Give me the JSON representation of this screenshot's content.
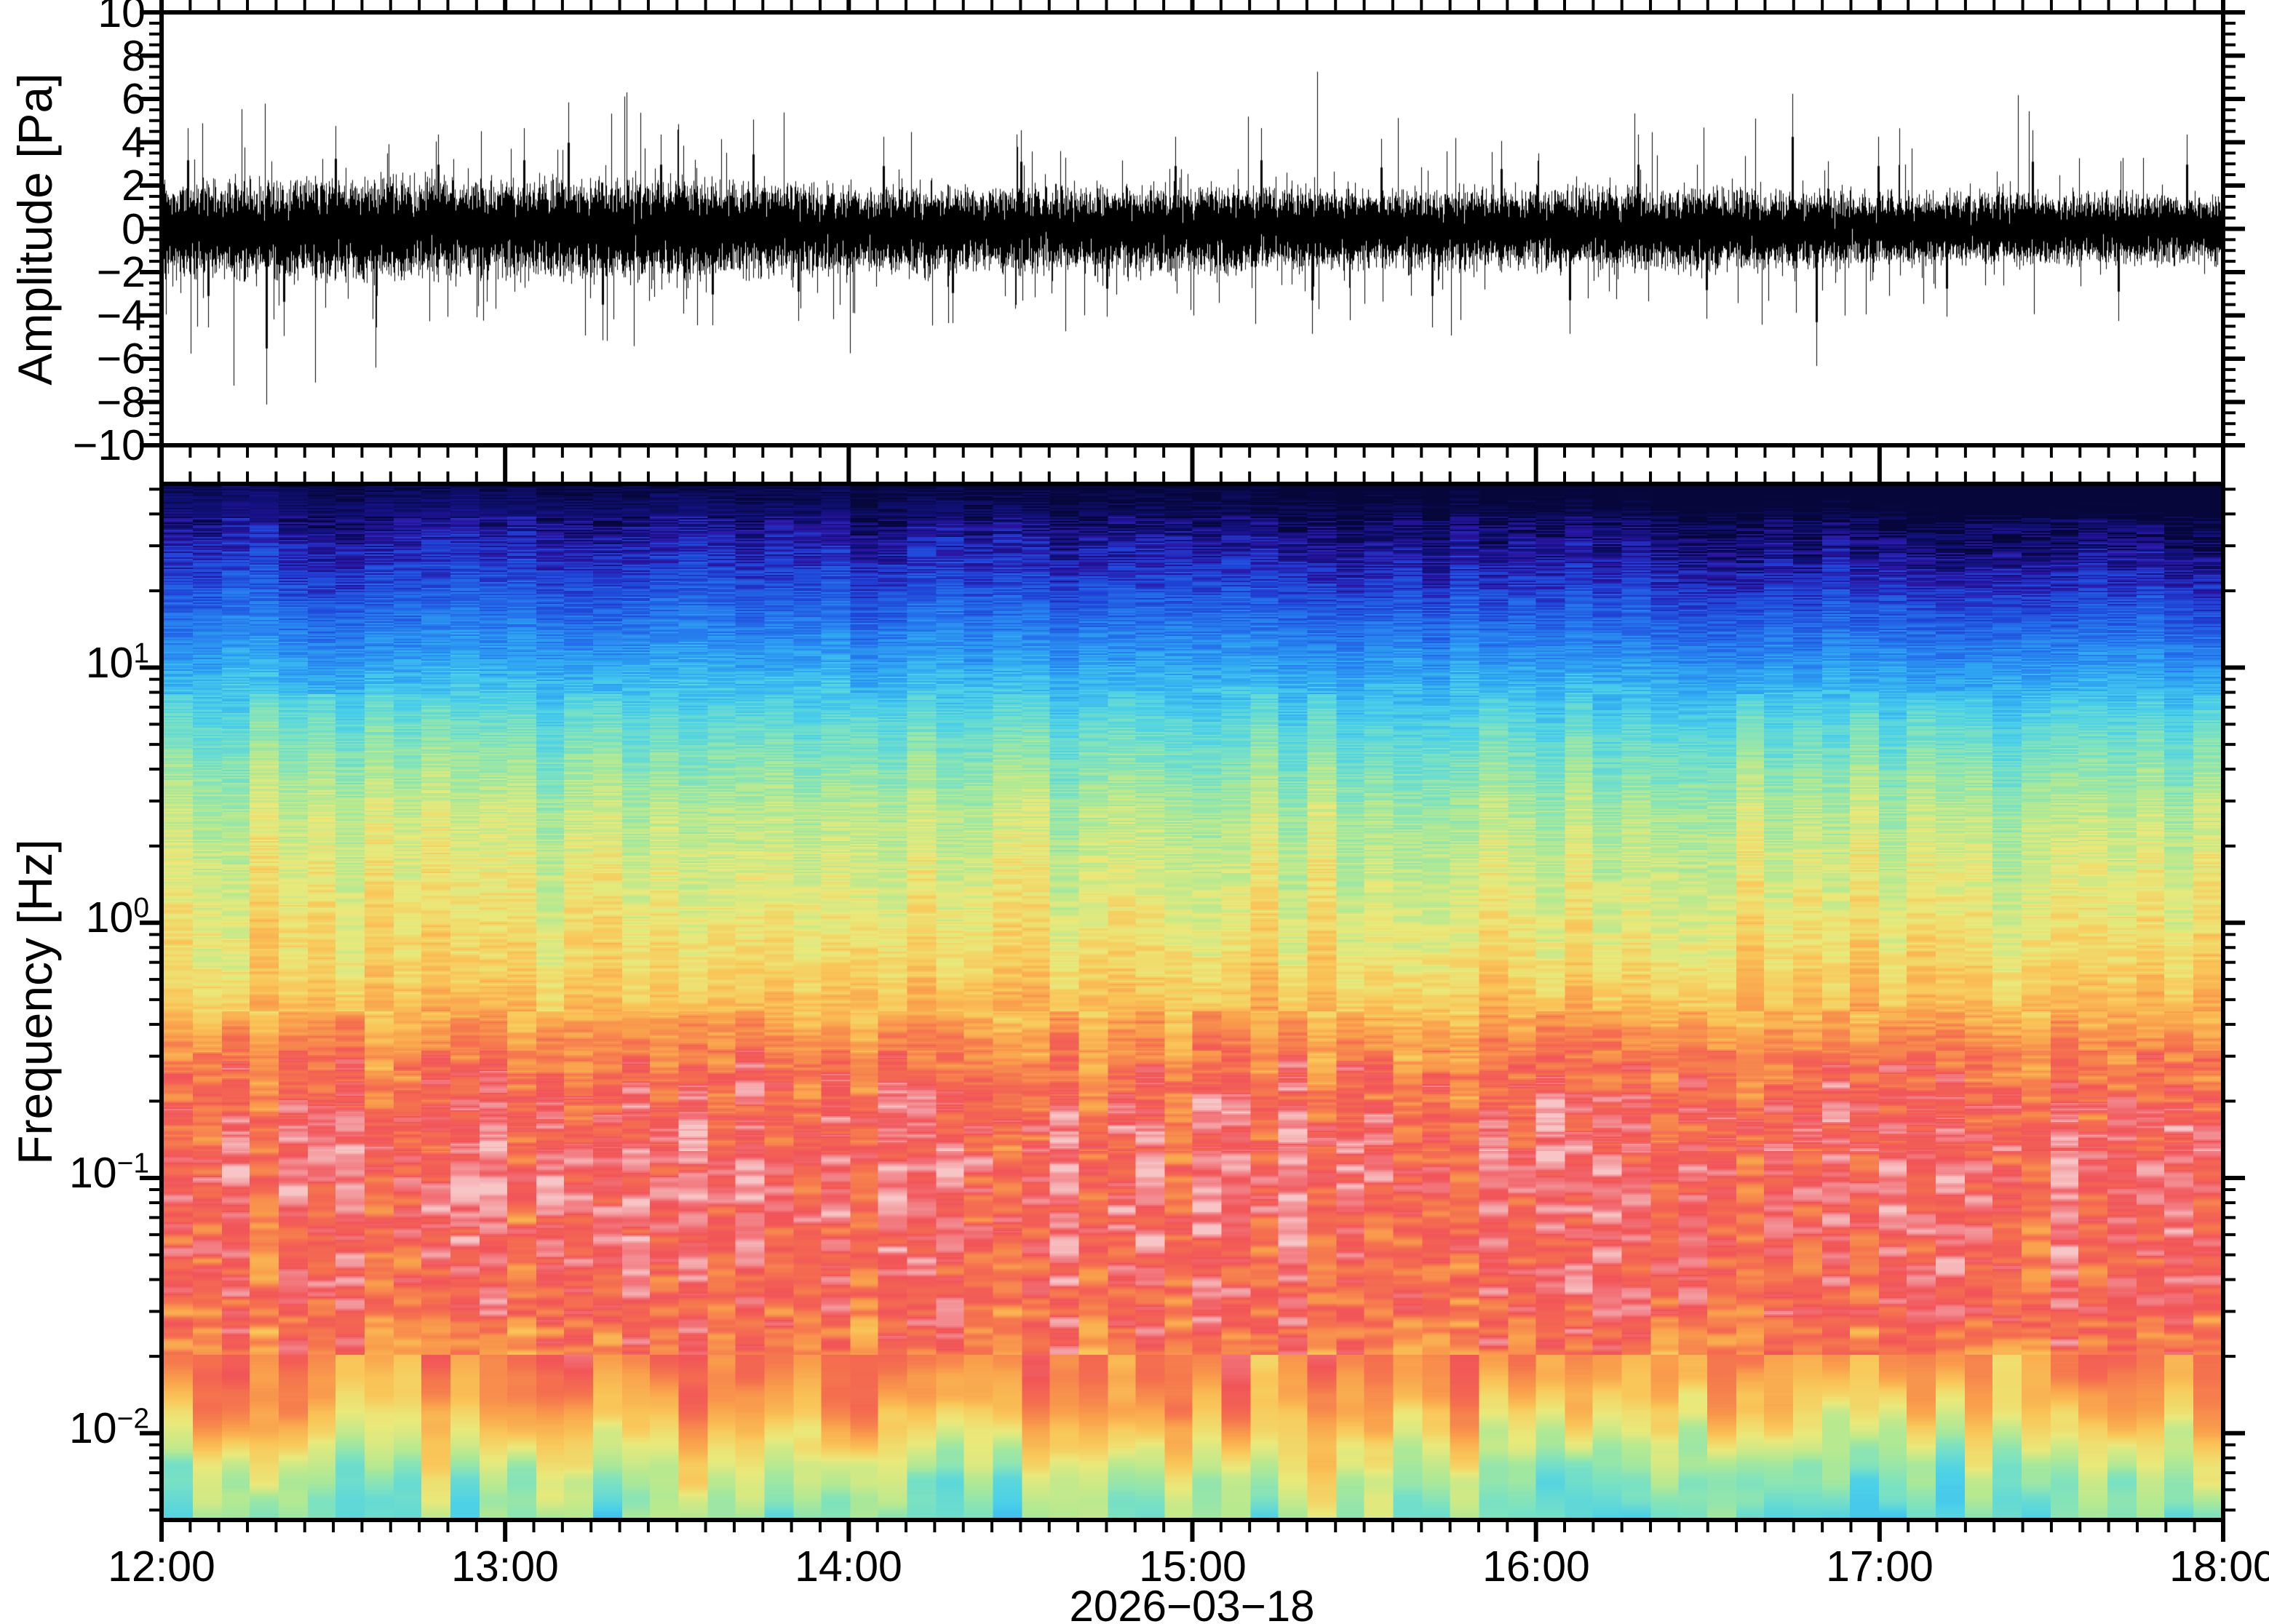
{
  "figure": {
    "background": "#ffffff",
    "frame_color": "#000000",
    "trace_color": "#000000"
  },
  "panels": {
    "waveform": {
      "ylabel": "Amplitude [Pa]",
      "ylim": [
        -10,
        10
      ],
      "ytick_major_step": 2,
      "ytick_minor_step": 0.5,
      "ytick_labels": [
        "10",
        "8",
        "6",
        "4",
        "2",
        "0",
        "−2",
        "−4",
        "−6",
        "−8",
        "−10"
      ],
      "ytick_values": [
        10,
        8,
        6,
        4,
        2,
        0,
        -2,
        -4,
        -6,
        -8,
        -10
      ]
    },
    "spectrogram": {
      "ylabel": "Frequency [Hz]",
      "scale": "log",
      "freq_min_hz": 0.0046,
      "freq_max_hz": 52.5,
      "decade_base": "10",
      "decade_exponents": [
        "1",
        "0",
        "−1",
        "−2"
      ],
      "decade_values": [
        1,
        0,
        -1,
        -2
      ]
    }
  },
  "xaxis": {
    "tick_labels": [
      "12:00",
      "13:00",
      "14:00",
      "15:00",
      "16:00",
      "17:00",
      "18:00"
    ],
    "duration_hours": 6,
    "minor_tick_minutes": 5,
    "date_label": "2026−03−18"
  },
  "chart_data": [
    {
      "type": "line",
      "name": "pressure-waveform",
      "ylabel": "Amplitude [Pa]",
      "x_range_hours": [
        0,
        6
      ],
      "ylim": [
        -10,
        10
      ],
      "appearance": "dense zero-mean broadband noise, solid black",
      "noise_sigma_envelope_pa": [
        [
          0,
          1.05
        ],
        [
          0.5,
          1.18
        ],
        [
          1,
          1.12
        ],
        [
          1.5,
          1.15
        ],
        [
          2,
          1.0
        ],
        [
          2.5,
          0.95
        ],
        [
          3,
          1.0
        ],
        [
          3.5,
          0.93
        ],
        [
          4,
          0.9
        ],
        [
          4.5,
          0.95
        ],
        [
          5,
          0.85
        ],
        [
          5.5,
          0.8
        ],
        [
          6,
          0.78
        ]
      ],
      "spikes_hours_amplitude_pa": [
        [
          0.07,
          4.7
        ],
        [
          0.13,
          -4.6
        ],
        [
          0.3,
          -8.2
        ],
        [
          0.35,
          -5.0
        ],
        [
          0.5,
          4.8
        ],
        [
          0.62,
          -4.6
        ],
        [
          0.8,
          4.4
        ],
        [
          1.05,
          4.7
        ],
        [
          1.18,
          5.9
        ],
        [
          1.28,
          -5.2
        ],
        [
          1.45,
          4.4
        ],
        [
          1.6,
          -4.5
        ],
        [
          1.72,
          5.1
        ],
        [
          1.85,
          -4.3
        ],
        [
          2.1,
          4.3
        ],
        [
          2.3,
          -4.4
        ],
        [
          2.5,
          4.6
        ],
        [
          2.75,
          -4.1
        ],
        [
          2.95,
          4.3
        ],
        [
          3.2,
          4.7
        ],
        [
          3.35,
          -4.9
        ],
        [
          3.55,
          4.2
        ],
        [
          3.7,
          -4.6
        ],
        [
          3.9,
          4.1
        ],
        [
          4.1,
          -4.9
        ],
        [
          4.3,
          4.4
        ],
        [
          4.5,
          -4.2
        ],
        [
          4.75,
          6.3
        ],
        [
          4.82,
          -6.4
        ],
        [
          5.0,
          4.3
        ],
        [
          5.2,
          -4.1
        ],
        [
          5.45,
          4.6
        ],
        [
          5.7,
          -4.3
        ],
        [
          5.9,
          4.4
        ]
      ],
      "visible_extremes_pa": {
        "max": 6.3,
        "min": -8.2
      }
    },
    {
      "type": "heatmap",
      "name": "infrasound-spectrogram",
      "ylabel": "Frequency [Hz]",
      "x_range_hours": [
        0,
        6
      ],
      "time_bins": 72,
      "freq_log10_range": [
        -2.34,
        1.72
      ],
      "power_profile_logf_level": [
        [
          -2.34,
          0.5
        ],
        [
          -2.18,
          0.56
        ],
        [
          -2.05,
          0.64
        ],
        [
          -1.9,
          0.74
        ],
        [
          -1.75,
          0.8
        ],
        [
          -1.6,
          0.84
        ],
        [
          -1.45,
          0.87
        ],
        [
          -1.2,
          0.89
        ],
        [
          -1.0,
          0.905
        ],
        [
          -0.8,
          0.885
        ],
        [
          -0.6,
          0.845
        ],
        [
          -0.45,
          0.785
        ],
        [
          -0.35,
          0.725
        ],
        [
          -0.2,
          0.675
        ],
        [
          0.0,
          0.635
        ],
        [
          0.2,
          0.605
        ],
        [
          0.45,
          0.565
        ],
        [
          0.65,
          0.505
        ],
        [
          0.8,
          0.445
        ],
        [
          0.95,
          0.365
        ],
        [
          1.05,
          0.305
        ],
        [
          1.2,
          0.225
        ],
        [
          1.35,
          0.155
        ],
        [
          1.5,
          0.095
        ],
        [
          1.62,
          0.045
        ],
        [
          1.72,
          0.02
        ]
      ],
      "colormap_stops": [
        [
          0.0,
          "#06063a"
        ],
        [
          0.04,
          "#10107a"
        ],
        [
          0.08,
          "#2a14a0"
        ],
        [
          0.13,
          "#1f3fd4"
        ],
        [
          0.22,
          "#2472ec"
        ],
        [
          0.32,
          "#2fa7f2"
        ],
        [
          0.41,
          "#4cd1e8"
        ],
        [
          0.49,
          "#7ce2c0"
        ],
        [
          0.56,
          "#b2e992"
        ],
        [
          0.63,
          "#e9e97a"
        ],
        [
          0.7,
          "#f9c658"
        ],
        [
          0.77,
          "#f99e4c"
        ],
        [
          0.84,
          "#f5714f"
        ],
        [
          0.9,
          "#f15458"
        ],
        [
          0.95,
          "#f28b90"
        ],
        [
          1.0,
          "#f7c5c6"
        ]
      ],
      "structure": {
        "column_minutes": 5,
        "column_level_jitter": [
          0.03,
          0.045,
          0.055,
          0.095
        ],
        "stripe_level_jitter": [
          0.05,
          0.04,
          0.045,
          0.025
        ],
        "pink_patch_band_logf": [
          -1.7,
          -0.5
        ],
        "pink_patch_jitter": 0.07,
        "high_freq_darkening_trend": 0.055,
        "early_midband_brightening": 0.025
      }
    }
  ]
}
